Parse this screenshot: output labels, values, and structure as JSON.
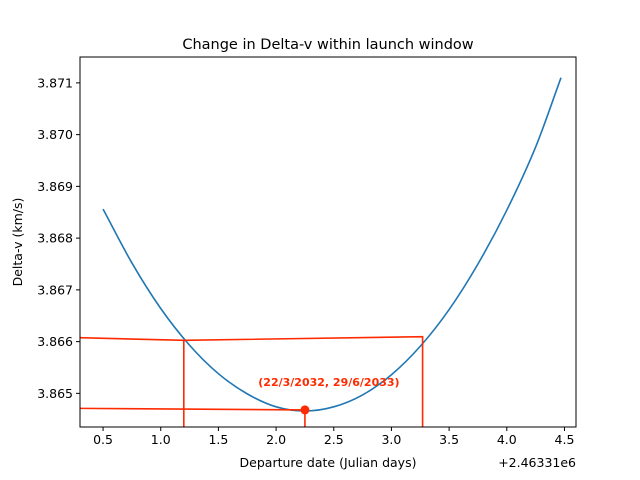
{
  "chart_data": {
    "type": "line",
    "title": "Change in Delta-v within launch window",
    "xlabel": "Departure date (Julian days)",
    "ylabel": "Delta-v (km/s)",
    "x_offset_label": "+2.46331e6",
    "xlim": [
      0.3,
      4.6
    ],
    "ylim": [
      3.86435,
      3.8715
    ],
    "x_ticks": [
      0.5,
      1.0,
      1.5,
      2.0,
      2.5,
      3.0,
      3.5,
      4.0,
      4.5
    ],
    "x_tick_labels": [
      "0.5",
      "1.0",
      "1.5",
      "2.0",
      "2.5",
      "3.0",
      "3.5",
      "4.0",
      "4.5"
    ],
    "y_ticks": [
      3.865,
      3.866,
      3.867,
      3.868,
      3.869,
      3.87,
      3.871
    ],
    "y_tick_labels": [
      "3.865",
      "3.866",
      "3.867",
      "3.868",
      "3.869",
      "3.870",
      "3.871"
    ],
    "series": [
      {
        "color": "#1f77b4",
        "x": [
          0.5,
          0.75,
          1.0,
          1.25,
          1.5,
          1.75,
          2.0,
          2.25,
          2.5,
          2.75,
          3.0,
          3.25,
          3.5,
          3.75,
          4.0,
          4.25,
          4.47
        ],
        "y": [
          3.86856,
          3.86752,
          3.86664,
          3.86593,
          3.86538,
          3.86499,
          3.86474,
          3.86466,
          3.86474,
          3.86497,
          3.86536,
          3.86591,
          3.86662,
          3.8675,
          3.86854,
          3.86976,
          3.8711
        ]
      }
    ],
    "annotations": [
      {
        "kind": "point",
        "color": "#ff2a00",
        "x": 2.25,
        "y": 3.86468,
        "text": "(22/3/2032, 29/6/2033)",
        "text_color": "#ff2a00"
      },
      {
        "kind": "polyline",
        "color": "#ff2a00",
        "x": [
          0.3,
          1.2,
          1.2
        ],
        "y": [
          3.866075,
          3.866025,
          3.86435
        ]
      },
      {
        "kind": "polyline",
        "color": "#ff2a00",
        "x": [
          1.2,
          3.27,
          3.27
        ],
        "y": [
          3.866025,
          3.866095,
          3.86435
        ]
      },
      {
        "kind": "polyline",
        "color": "#ff2a00",
        "x": [
          0.3,
          2.25,
          2.25
        ],
        "y": [
          3.86471,
          3.86468,
          3.86435
        ]
      }
    ],
    "grid": false,
    "legend": "none"
  }
}
